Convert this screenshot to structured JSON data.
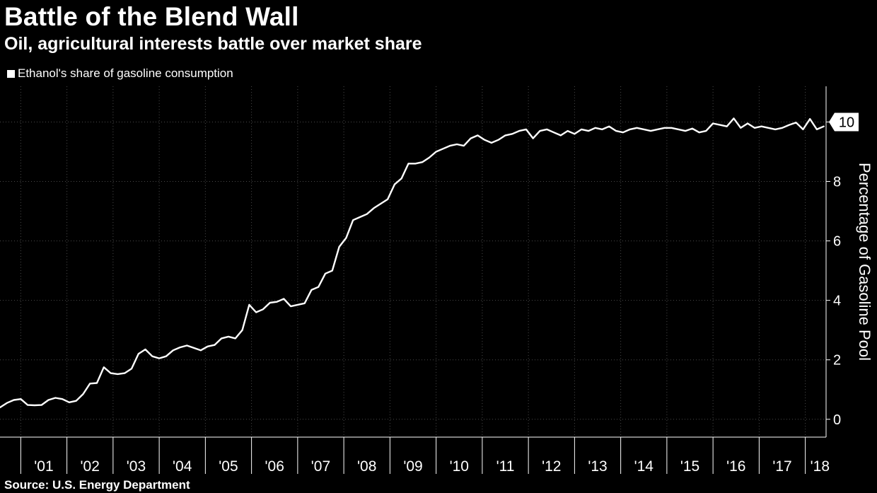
{
  "title": "Battle of the Blend Wall",
  "subtitle": "Oil, agricultural interests battle over market share",
  "source": "Source: U.S. Energy Department",
  "colors": {
    "background": "#000000",
    "line": "#ffffff",
    "grid": "#4a4a4a",
    "text": "#ffffff"
  },
  "chart_data": {
    "type": "line",
    "title": "Battle of the Blend Wall",
    "subtitle": "Oil, agricultural interests battle over market share",
    "ylabel": "Percentage of Gasoline Pool",
    "ylim": [
      -0.6,
      11.2
    ],
    "yticks": [
      0,
      2,
      4,
      6,
      8,
      10
    ],
    "ytick_labels": [
      "0",
      "2",
      "4",
      "6",
      "8",
      "10"
    ],
    "x_range": [
      2000.55,
      2018.45
    ],
    "xticks": [
      2001,
      2002,
      2003,
      2004,
      2005,
      2006,
      2007,
      2008,
      2009,
      2010,
      2011,
      2012,
      2013,
      2014,
      2015,
      2016,
      2017,
      2018
    ],
    "xtick_labels": [
      "'01",
      "'02",
      "'03",
      "'04",
      "'05",
      "'06",
      "'07",
      "'08",
      "'09",
      "'10",
      "'11",
      "'12",
      "'13",
      "'14",
      "'15",
      "'16",
      "'17",
      "'18"
    ],
    "last_value_label": "10",
    "grid": true,
    "legend": "top-left",
    "series": [
      {
        "name": "Ethanol's share of gasoline consumption",
        "x": [
          2000.55,
          2000.7,
          2000.85,
          2001.0,
          2001.15,
          2001.3,
          2001.45,
          2001.6,
          2001.75,
          2001.9,
          2002.05,
          2002.2,
          2002.35,
          2002.5,
          2002.65,
          2002.8,
          2002.95,
          2003.1,
          2003.25,
          2003.4,
          2003.55,
          2003.7,
          2003.85,
          2004.0,
          2004.15,
          2004.3,
          2004.45,
          2004.6,
          2004.75,
          2004.9,
          2005.05,
          2005.2,
          2005.35,
          2005.5,
          2005.65,
          2005.8,
          2005.95,
          2006.1,
          2006.25,
          2006.4,
          2006.55,
          2006.7,
          2006.85,
          2007.0,
          2007.15,
          2007.3,
          2007.45,
          2007.6,
          2007.75,
          2007.9,
          2008.05,
          2008.2,
          2008.35,
          2008.5,
          2008.65,
          2008.8,
          2008.95,
          2009.1,
          2009.25,
          2009.4,
          2009.55,
          2009.7,
          2009.85,
          2010.0,
          2010.15,
          2010.3,
          2010.45,
          2010.6,
          2010.75,
          2010.9,
          2011.05,
          2011.2,
          2011.35,
          2011.5,
          2011.65,
          2011.8,
          2011.95,
          2012.1,
          2012.25,
          2012.4,
          2012.55,
          2012.7,
          2012.85,
          2013.0,
          2013.15,
          2013.3,
          2013.45,
          2013.6,
          2013.75,
          2013.9,
          2014.05,
          2014.2,
          2014.35,
          2014.5,
          2014.65,
          2014.8,
          2014.95,
          2015.1,
          2015.25,
          2015.4,
          2015.55,
          2015.7,
          2015.85,
          2016.0,
          2016.15,
          2016.3,
          2016.45,
          2016.6,
          2016.75,
          2016.9,
          2017.05,
          2017.2,
          2017.35,
          2017.5,
          2017.65,
          2017.8,
          2017.95,
          2018.1,
          2018.25,
          2018.4
        ],
        "values": [
          0.4,
          0.55,
          0.65,
          0.68,
          0.48,
          0.47,
          0.48,
          0.65,
          0.72,
          0.68,
          0.57,
          0.62,
          0.85,
          1.2,
          1.22,
          1.75,
          1.55,
          1.52,
          1.55,
          1.7,
          2.2,
          2.35,
          2.12,
          2.05,
          2.12,
          2.32,
          2.42,
          2.48,
          2.4,
          2.32,
          2.45,
          2.5,
          2.72,
          2.78,
          2.72,
          3.0,
          3.85,
          3.6,
          3.7,
          3.92,
          3.95,
          4.05,
          3.8,
          3.85,
          3.9,
          4.35,
          4.45,
          4.9,
          5.0,
          5.8,
          6.1,
          6.7,
          6.8,
          6.9,
          7.1,
          7.25,
          7.4,
          7.9,
          8.1,
          8.6,
          8.6,
          8.65,
          8.8,
          9.0,
          9.1,
          9.2,
          9.25,
          9.2,
          9.45,
          9.55,
          9.4,
          9.3,
          9.4,
          9.55,
          9.6,
          9.7,
          9.75,
          9.45,
          9.7,
          9.75,
          9.65,
          9.55,
          9.7,
          9.6,
          9.75,
          9.7,
          9.8,
          9.75,
          9.85,
          9.7,
          9.65,
          9.75,
          9.8,
          9.75,
          9.7,
          9.75,
          9.8,
          9.8,
          9.75,
          9.7,
          9.78,
          9.65,
          9.7,
          9.95,
          9.9,
          9.85,
          10.12,
          9.8,
          9.95,
          9.8,
          9.85,
          9.8,
          9.75,
          9.8,
          9.9,
          9.98,
          9.75,
          10.1,
          9.75,
          9.85
        ]
      }
    ]
  }
}
